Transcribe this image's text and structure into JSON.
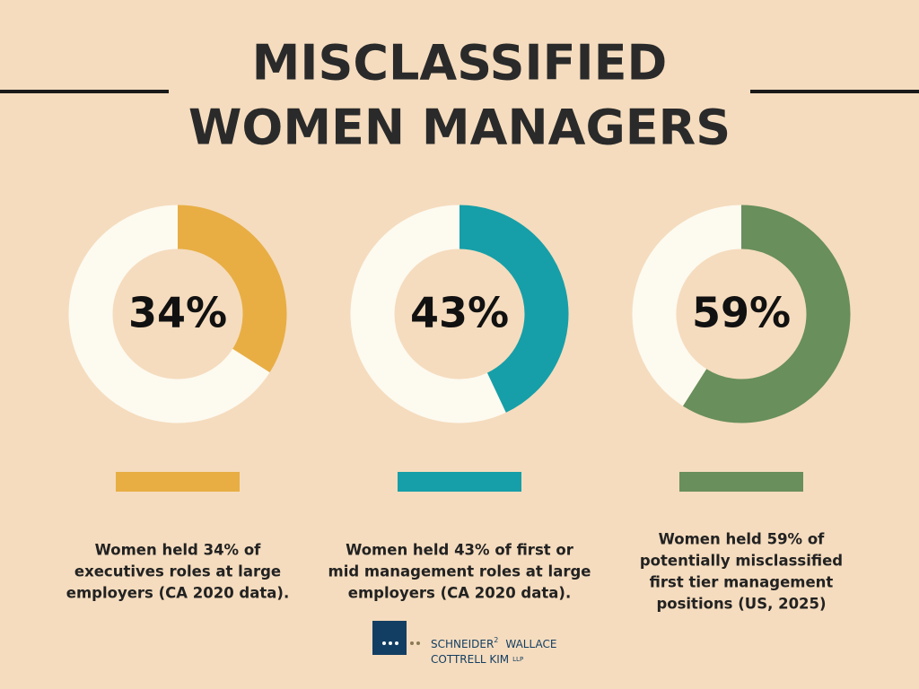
{
  "title_lines": [
    "MISCLASSIFIED",
    "WOMEN MANAGERS"
  ],
  "chart_data": [
    {
      "type": "donut",
      "categories": [
        null,
        null
      ],
      "values": [
        34,
        66
      ],
      "colors": [
        "#e8ae44",
        "#fdfaf0"
      ],
      "value_labels": [
        "34%",
        null
      ],
      "caption": [
        "Women held 34% of",
        "executives roles at large",
        "employers (CA 2020 data)."
      ]
    },
    {
      "type": "donut",
      "categories": [
        null,
        null
      ],
      "values": [
        43,
        57
      ],
      "colors": [
        "#169fa8",
        "#fdfaf0"
      ],
      "value_labels": [
        "43%",
        null
      ],
      "caption": [
        "Women held 43% of first or",
        "mid management roles at large",
        "employers (CA 2020 data)."
      ]
    },
    {
      "type": "donut",
      "categories": [
        null,
        null
      ],
      "values": [
        59,
        41
      ],
      "colors": [
        "#688f5c",
        "#fdfaf0"
      ],
      "value_labels": [
        "59%",
        null
      ],
      "caption": [
        "Women held 59% of",
        "potentially misclassified",
        "first tier management",
        "positions (US, 2025)"
      ]
    }
  ],
  "logo": {
    "name1": "SCHNEIDER",
    "sup": "2",
    "name2": "WALLACE",
    "name3": "COTTRELL  KIM",
    "suffix": "LLP"
  }
}
